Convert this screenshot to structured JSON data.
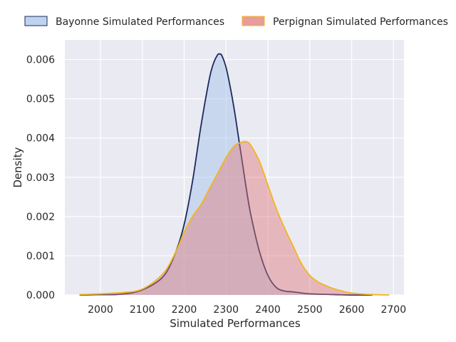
{
  "chart_data": {
    "type": "area",
    "title": "",
    "xlabel": "Simulated Performances",
    "ylabel": "Density",
    "xlim": [
      1915,
      2725
    ],
    "ylim": [
      0,
      0.0065
    ],
    "x_ticks": [
      "2000",
      "2100",
      "2200",
      "2300",
      "2400",
      "2500",
      "2600",
      "2700"
    ],
    "y_ticks": [
      "0.000",
      "0.001",
      "0.002",
      "0.003",
      "0.004",
      "0.005",
      "0.006"
    ],
    "grid": true,
    "legend_position": "top",
    "background": "#eaeaf2",
    "series": [
      {
        "name": "Bayonne Simulated Performances",
        "line_color": "#1b2a5a",
        "fill_color": "#a8c4ea",
        "fill_opacity": 0.5,
        "x": [
          1950,
          2000,
          2050,
          2100,
          2150,
          2180,
          2200,
          2220,
          2240,
          2260,
          2270,
          2280,
          2285,
          2290,
          2300,
          2310,
          2320,
          2330,
          2340,
          2350,
          2360,
          2380,
          2400,
          2420,
          2440,
          2460,
          2480,
          2500,
          2520,
          2560,
          2600,
          2650
        ],
        "y": [
          0.0,
          1e-05,
          2e-05,
          0.00013,
          0.00047,
          0.0011,
          0.0018,
          0.0029,
          0.0043,
          0.0055,
          0.0059,
          0.00612,
          0.00614,
          0.0061,
          0.0058,
          0.0053,
          0.0047,
          0.004,
          0.0033,
          0.0026,
          0.002,
          0.0011,
          0.0005,
          0.00019,
          0.0001,
          8e-05,
          5e-05,
          3e-05,
          2e-05,
          1e-05,
          0.0,
          0.0
        ]
      },
      {
        "name": "Perpignan Simulated Performances",
        "line_color": "#f2b61c",
        "fill_color": "#e07b7b",
        "fill_opacity": 0.45,
        "x": [
          1950,
          2000,
          2050,
          2100,
          2150,
          2180,
          2200,
          2220,
          2240,
          2260,
          2280,
          2300,
          2320,
          2340,
          2350,
          2360,
          2380,
          2400,
          2420,
          2440,
          2460,
          2480,
          2500,
          2520,
          2540,
          2560,
          2600,
          2650,
          2690
        ],
        "y": [
          1e-05,
          3e-05,
          6e-05,
          0.00015,
          0.00055,
          0.0011,
          0.0016,
          0.002,
          0.0023,
          0.0027,
          0.0031,
          0.0035,
          0.0038,
          0.0039,
          0.0039,
          0.0038,
          0.0034,
          0.0028,
          0.0022,
          0.0017,
          0.00125,
          0.0008,
          0.0005,
          0.00033,
          0.00023,
          0.00015,
          5e-05,
          1e-05,
          0.0
        ]
      }
    ]
  }
}
